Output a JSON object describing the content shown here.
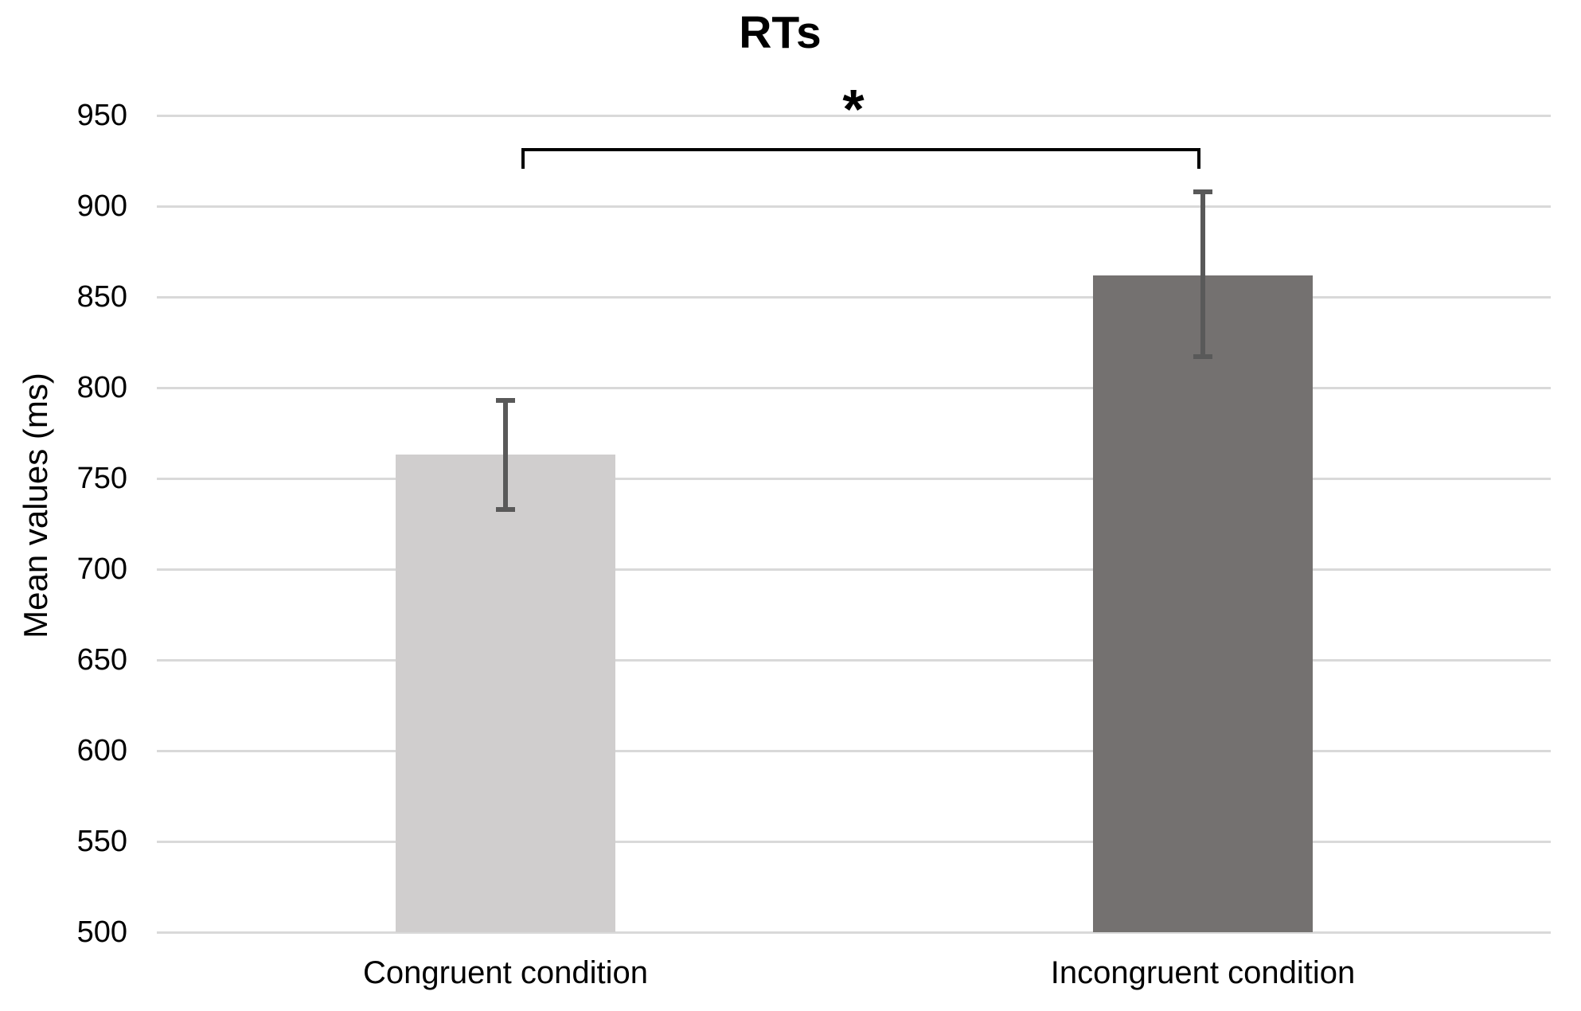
{
  "chart_data": {
    "type": "bar",
    "title": "RTs",
    "xlabel": "",
    "ylabel": "Mean values (ms)",
    "categories": [
      "Congruent condition",
      "Incongruent condition"
    ],
    "values": [
      763,
      862
    ],
    "error_bars": {
      "upper": [
        793,
        908
      ],
      "lower": [
        733,
        817
      ]
    },
    "ylim": [
      500,
      950
    ],
    "ytick_step": 50,
    "yticks": [
      500,
      550,
      600,
      650,
      700,
      750,
      800,
      850,
      900,
      950
    ],
    "grid": true,
    "legend": "none",
    "significance": {
      "label": "*",
      "between": [
        "Congruent condition",
        "Incongruent condition"
      ]
    },
    "colors": {
      "bar_congruent": "#d0cece",
      "bar_incongruent": "#747170",
      "error_bar": "#595959",
      "gridline": "#d9d9d9",
      "text": "#000000",
      "bracket": "#000000",
      "background": "#ffffff"
    }
  }
}
